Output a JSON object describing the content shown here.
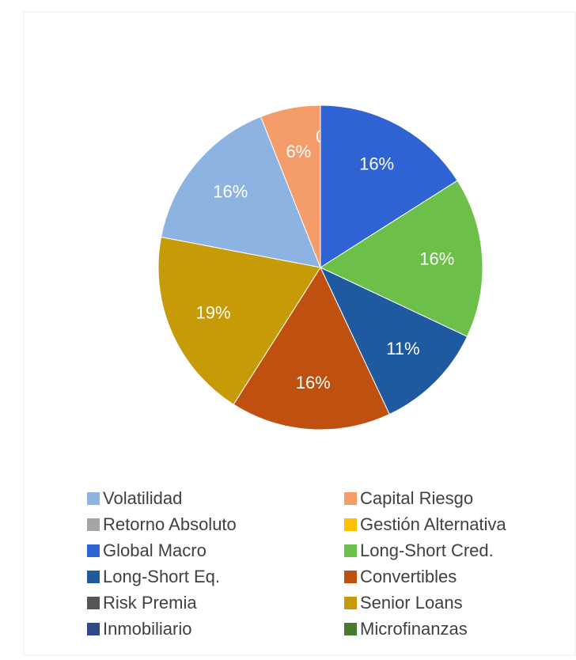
{
  "chart_data": {
    "type": "pie",
    "categories": [
      "Volatilidad",
      "Capital Riesgo",
      "Retorno Absoluto",
      "Gestión Alternativa",
      "Global Macro",
      "Long-Short Cred.",
      "Long-Short Eq.",
      "Convertibles",
      "Risk Premia",
      "Senior Loans",
      "Inmobiliario",
      "Microfinanzas"
    ],
    "values": [
      16,
      6,
      0,
      0,
      16,
      16,
      11,
      16,
      0,
      19,
      0,
      0
    ],
    "value_labels": [
      "16%",
      "6%",
      "0%",
      null,
      "16%",
      "16%",
      "11%",
      "16%",
      null,
      "19%",
      null,
      null
    ],
    "colors": [
      "#8db3e2",
      "#f49c6a",
      "#a5a5a5",
      "#ffc000",
      "#2f63d3",
      "#6cc04a",
      "#1f5aa0",
      "#c0500f",
      "#555555",
      "#c79a08",
      "#2b4a8a",
      "#4a7a30"
    ],
    "legend": "bottom"
  }
}
